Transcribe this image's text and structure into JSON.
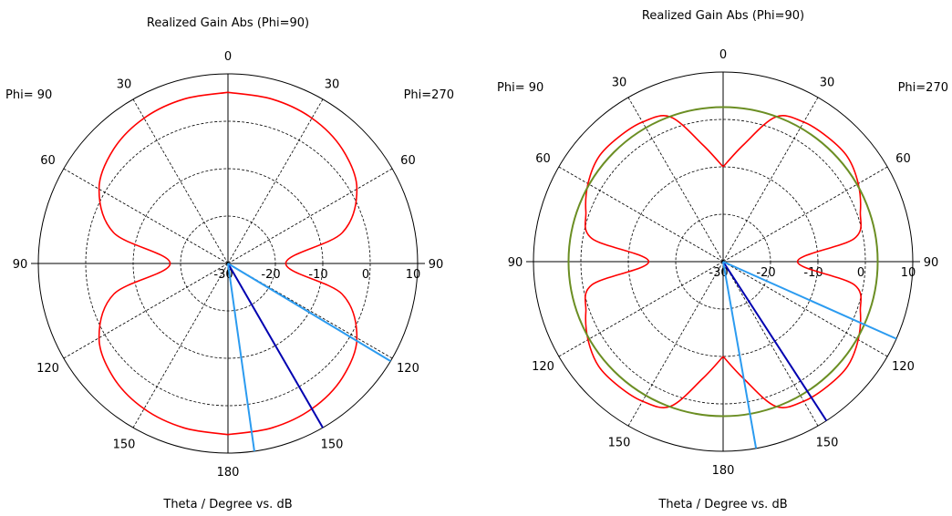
{
  "chart_data": [
    {
      "type": "polar",
      "title": "Realized Gain Abs (Phi=90)",
      "xlabel": "Theta / Degree vs. dB",
      "left_label": "Phi= 90",
      "right_label": "Phi=270",
      "angle_labels": [
        "0",
        "30",
        "60",
        "90",
        "120",
        "150",
        "180",
        "150",
        "120",
        "90",
        "60",
        "30"
      ],
      "radial_labels": [
        "-30",
        "-20",
        "-10",
        "0",
        "10"
      ],
      "rlim": [
        -30,
        10
      ],
      "grid": true,
      "colors": {
        "pattern": "#ff0000",
        "marker_dark": "#0000b0",
        "marker_light": "#2b9bf0",
        "circle": "#6b8e23"
      },
      "series": [
        {
          "theta": [
            0,
            15,
            30,
            45,
            60,
            75,
            90,
            105,
            120,
            135,
            150,
            165,
            180,
            195,
            210,
            225,
            240,
            255,
            270,
            285,
            300,
            315,
            330,
            345,
            360
          ],
          "r": [
            6.1,
            5.9,
            5.4,
            4.1,
            1.4,
            -5.1,
            -17.8,
            -5.1,
            1.4,
            4.1,
            5.4,
            5.9,
            6.1,
            5.9,
            5.4,
            4.1,
            1.4,
            -5.1,
            -17.8,
            -5.1,
            1.4,
            4.1,
            5.4,
            5.9,
            6.1
          ]
        }
      ],
      "markers": [
        {
          "theta": 150,
          "r": 10,
          "color": "dark"
        },
        {
          "theta": 121,
          "r": 10,
          "color": "light"
        },
        {
          "theta": 172,
          "r": 10,
          "color": "light"
        }
      ]
    },
    {
      "type": "polar",
      "title": "Realized Gain Abs (Phi=90)",
      "xlabel": "Theta / Degree vs. dB",
      "left_label": "Phi= 90",
      "right_label": "Phi=270",
      "angle_labels": [
        "0",
        "30",
        "60",
        "90",
        "120",
        "150",
        "180",
        "150",
        "120",
        "90",
        "60",
        "30"
      ],
      "radial_labels": [
        "-30",
        "-20",
        "-10",
        "0",
        "10"
      ],
      "rlim": [
        -30,
        10
      ],
      "grid": true,
      "colors": {
        "pattern": "#ff0000",
        "marker_dark": "#0000b0",
        "marker_light": "#2b9bf0",
        "circle": "#6b8e23"
      },
      "series": [
        {
          "theta": [
            0,
            10,
            20,
            30,
            40,
            50,
            60,
            70,
            80,
            90,
            100,
            110,
            120,
            130,
            140,
            150,
            160,
            170,
            180,
            190,
            200,
            210,
            220,
            230,
            240,
            250,
            260,
            270,
            280,
            290,
            300,
            310,
            320,
            330,
            340,
            350,
            360
          ],
          "r": [
            -10,
            -4.9,
            2.5,
            4.0,
            4.3,
            4.3,
            2.9,
            0.8,
            -1.9,
            -14.3,
            -1.9,
            0.8,
            2.9,
            4.3,
            4.3,
            4.0,
            2.5,
            -4.9,
            -10,
            -4.9,
            2.5,
            4.0,
            4.3,
            4.3,
            2.9,
            0.8,
            -1.9,
            -14.3,
            -1.9,
            0.8,
            2.9,
            4.3,
            4.3,
            4.0,
            2.5,
            -4.9,
            -10
          ],
          "closed": true
        },
        {
          "type": "circle",
          "r": 2.6
        }
      ],
      "markers": [
        {
          "theta": 147,
          "r": 10,
          "color": "dark"
        },
        {
          "theta": 114,
          "r": 10,
          "color": "light"
        },
        {
          "theta": 170,
          "r": 10,
          "color": "light"
        }
      ]
    }
  ]
}
